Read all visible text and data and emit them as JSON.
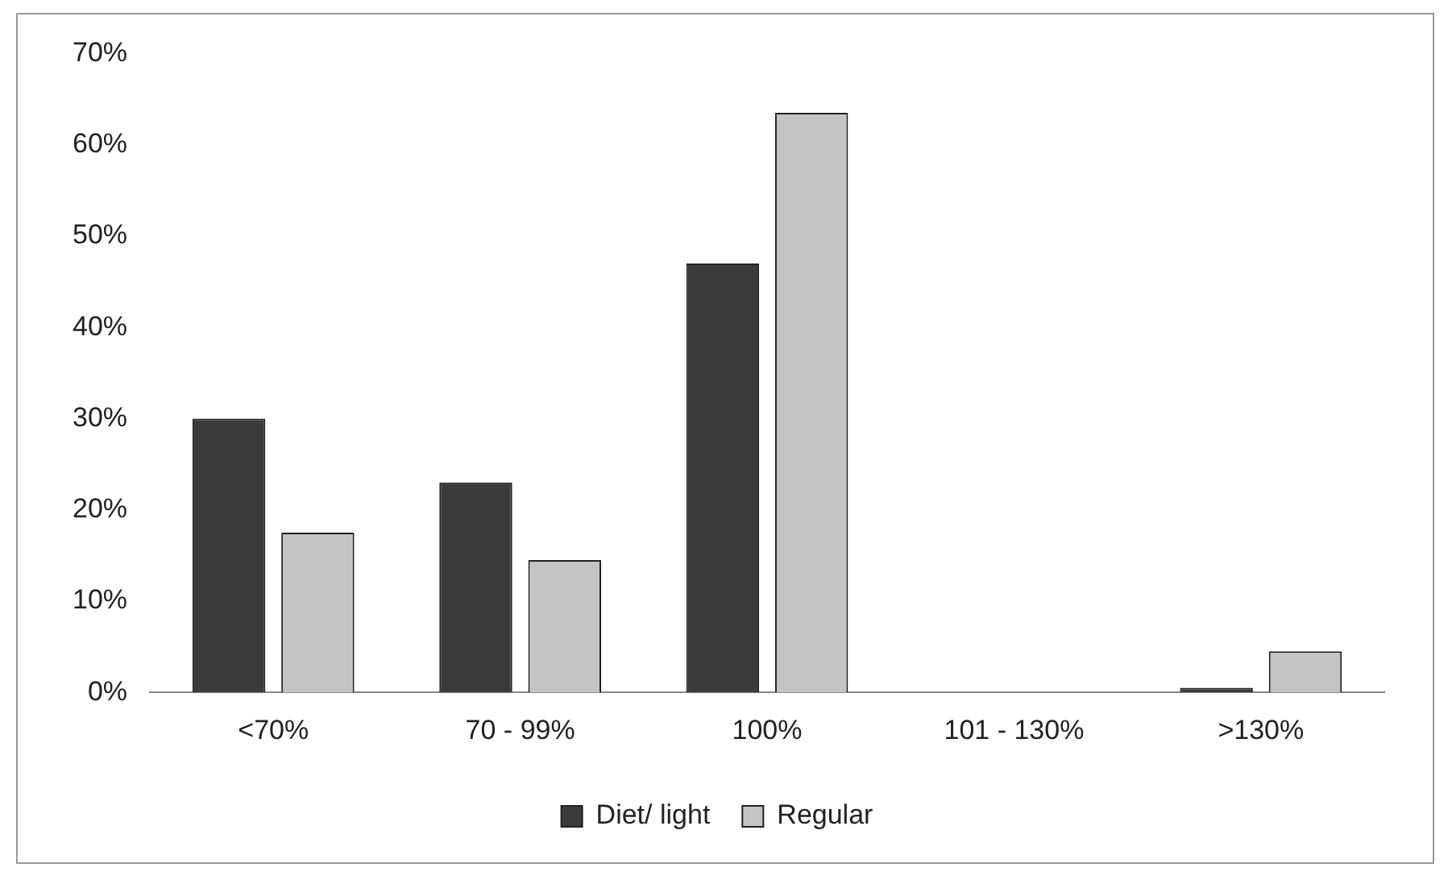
{
  "chart_data": {
    "type": "bar",
    "categories": [
      "<70%",
      "70 - 99%",
      "100%",
      "101 - 130%",
      ">130%"
    ],
    "series": [
      {
        "name": "Diet/ light",
        "color": "#3b3b3b",
        "values": [
          30,
          23,
          47,
          0,
          0.5
        ]
      },
      {
        "name": "Regular",
        "color": "#c4c4c4",
        "values": [
          17.5,
          14.5,
          63.5,
          0,
          4.5
        ]
      }
    ],
    "ylim": [
      0,
      70
    ],
    "yticks": [
      {
        "value": 0,
        "label": "0%"
      },
      {
        "value": 10,
        "label": "10%"
      },
      {
        "value": 20,
        "label": "20%"
      },
      {
        "value": 30,
        "label": "30%"
      },
      {
        "value": 40,
        "label": "40%"
      },
      {
        "value": 50,
        "label": "50%"
      },
      {
        "value": 60,
        "label": "60%"
      },
      {
        "value": 70,
        "label": "70%"
      }
    ],
    "grid": false,
    "legend": "bottom"
  }
}
